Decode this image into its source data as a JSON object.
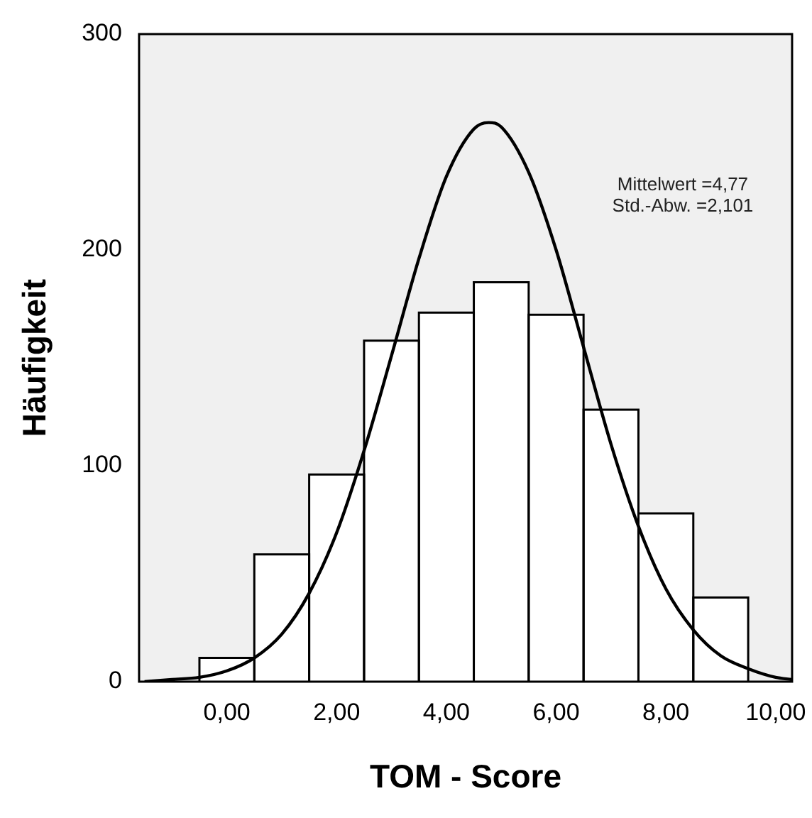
{
  "chart_data": {
    "type": "histogram",
    "xlabel": "TOM - Score",
    "ylabel": "Häufigkeit",
    "bins": [
      -0.5,
      0.5,
      1.5,
      2.5,
      3.5,
      4.5,
      5.5,
      6.5,
      7.5,
      8.5,
      9.5
    ],
    "values": [
      11,
      59,
      96,
      158,
      171,
      185,
      170,
      126,
      78,
      39
    ],
    "color": "#ffffff",
    "series": [
      {
        "type": "line",
        "color": "#000000",
        "x": [
          -1.5,
          -1,
          -0.5,
          0,
          0.5,
          1,
          1.5,
          2,
          2.5,
          3,
          3.5,
          4,
          4.5,
          4.77,
          5,
          5.5,
          6,
          6.5,
          7,
          7.5,
          8,
          8.5,
          9,
          9.5,
          10,
          10.3
        ],
        "values": [
          0,
          1,
          2,
          5,
          11,
          22,
          41,
          69,
          107,
          151,
          196,
          234,
          256,
          259,
          257,
          236,
          200,
          155,
          110,
          72,
          43,
          24,
          12,
          6,
          2,
          1
        ]
      }
    ],
    "xlim": [
      -1.6,
      10.3
    ],
    "xticks": [
      {
        "value": 0,
        "label": "0,00"
      },
      {
        "value": 2,
        "label": "2,00"
      },
      {
        "value": 4,
        "label": "4,00"
      },
      {
        "value": 6,
        "label": "6,00"
      },
      {
        "value": 8,
        "label": "8,00"
      },
      {
        "value": 10,
        "label": "10,00"
      }
    ],
    "ylim": [
      0,
      300
    ],
    "yticks": [
      0,
      100,
      200,
      300
    ],
    "grid": false,
    "legend": false,
    "marker": "none",
    "line_style": "solid",
    "annotations": [
      "Mittelwert =4,77",
      "Std.-Abw. =2,101"
    ]
  }
}
